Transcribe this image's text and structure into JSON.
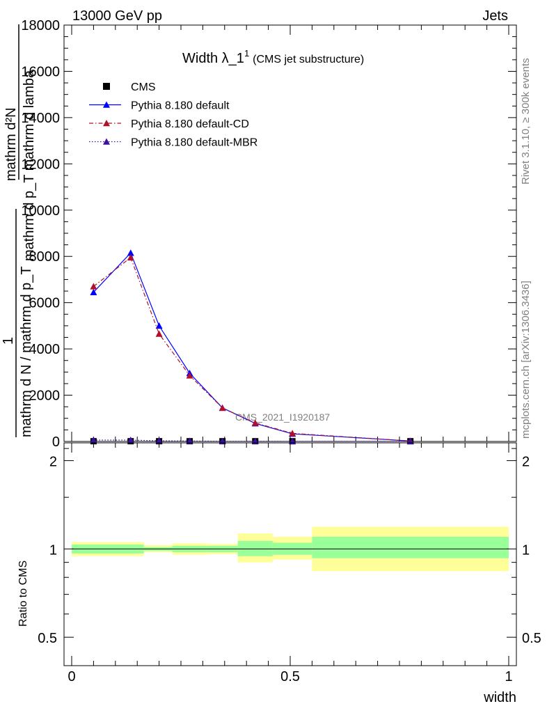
{
  "header": {
    "left": "13000 GeV pp",
    "right": "Jets"
  },
  "side_labels": {
    "rivet": "Rivet 3.1.10, ≥ 300k events",
    "mcplots": "mcplots.cern.ch [arXiv:1306.3436]"
  },
  "watermark": "CMS_2021_I1920187",
  "chart_data": [
    {
      "type": "line",
      "title": "Width λ_1¹ (CMS jet substructure)",
      "title_main": "Width λ_1",
      "title_sup": "1",
      "title_sub": "(CMS jet substructure)",
      "ylabel_lines": [
        "mathrm d²N",
        "mathrm d p_T mathrm d lamba",
        "1",
        "mathrm d N / mathrm d p_T"
      ],
      "xlim": [
        0,
        1
      ],
      "ylim": [
        0,
        18000
      ],
      "yticks": [
        0,
        2000,
        4000,
        6000,
        8000,
        10000,
        12000,
        14000,
        16000,
        18000
      ],
      "ytick_labels": [
        "0",
        "2000",
        "4000",
        "6000",
        "8000",
        "10000",
        "12000",
        "14000",
        "16000",
        "18000"
      ],
      "legend_placement": "top-left",
      "series": [
        {
          "name": "CMS",
          "color": "#000000",
          "marker": "square",
          "x": [
            0.05,
            0.135,
            0.2,
            0.27,
            0.345,
            0.42,
            0.505,
            0.775
          ],
          "y": [
            10,
            10,
            10,
            10,
            10,
            10,
            10,
            10
          ]
        },
        {
          "name": "Pythia 8.180 default",
          "color": "#0000ff",
          "marker": "triangle",
          "dash": "solid",
          "x": [
            0.05,
            0.135,
            0.2,
            0.27,
            0.345,
            0.42,
            0.505,
            0.775
          ],
          "y": [
            6450,
            8150,
            5000,
            2950,
            1450,
            780,
            330,
            20
          ]
        },
        {
          "name": "Pythia 8.180 default-CD",
          "color": "#b0102a",
          "marker": "triangle",
          "dash": "dashdot",
          "x": [
            0.05,
            0.135,
            0.2,
            0.27,
            0.345,
            0.42,
            0.505,
            0.775
          ],
          "y": [
            6700,
            7950,
            4650,
            2850,
            1450,
            800,
            350,
            20
          ]
        },
        {
          "name": "Pythia 8.180 default-MBR",
          "color": "#3a10a0",
          "marker": "triangle",
          "dash": "dotted",
          "x": [
            0.05,
            0.135,
            0.2,
            0.27,
            0.345,
            0.42,
            0.505,
            0.775
          ],
          "y": [
            60,
            60,
            30,
            20,
            10,
            10,
            5,
            2
          ]
        }
      ]
    },
    {
      "type": "area",
      "ylabel": "Ratio to CMS",
      "xlabel": "width",
      "xlim": [
        0,
        1
      ],
      "ylim": [
        0.4,
        2.3
      ],
      "log_y": true,
      "yticks": [
        0.5,
        1,
        2
      ],
      "ytick_labels": [
        "0.5",
        "1",
        "2"
      ],
      "xticks": [
        0,
        0.5,
        1
      ],
      "xtick_labels": [
        "0",
        "0.5",
        "1"
      ],
      "bands": [
        {
          "x0": 0.0,
          "x1": 0.165,
          "stat_lo": 0.965,
          "stat_hi": 1.035,
          "tot_lo": 0.945,
          "tot_hi": 1.055
        },
        {
          "x0": 0.165,
          "x1": 0.23,
          "stat_lo": 0.985,
          "stat_hi": 1.015,
          "tot_lo": 0.975,
          "tot_hi": 1.03
        },
        {
          "x0": 0.23,
          "x1": 0.31,
          "stat_lo": 0.975,
          "stat_hi": 1.025,
          "tot_lo": 0.955,
          "tot_hi": 1.045
        },
        {
          "x0": 0.31,
          "x1": 0.38,
          "stat_lo": 0.975,
          "stat_hi": 1.025,
          "tot_lo": 0.96,
          "tot_hi": 1.04
        },
        {
          "x0": 0.38,
          "x1": 0.46,
          "stat_lo": 0.945,
          "stat_hi": 1.065,
          "tot_lo": 0.9,
          "tot_hi": 1.13
        },
        {
          "x0": 0.46,
          "x1": 0.55,
          "stat_lo": 0.955,
          "stat_hi": 1.05,
          "tot_lo": 0.92,
          "tot_hi": 1.1
        },
        {
          "x0": 0.55,
          "x1": 1.0,
          "stat_lo": 0.93,
          "stat_hi": 1.1,
          "tot_lo": 0.84,
          "tot_hi": 1.19
        }
      ],
      "stat_color": "#99ff99",
      "tot_color": "#ffff99",
      "reference": 1
    }
  ]
}
